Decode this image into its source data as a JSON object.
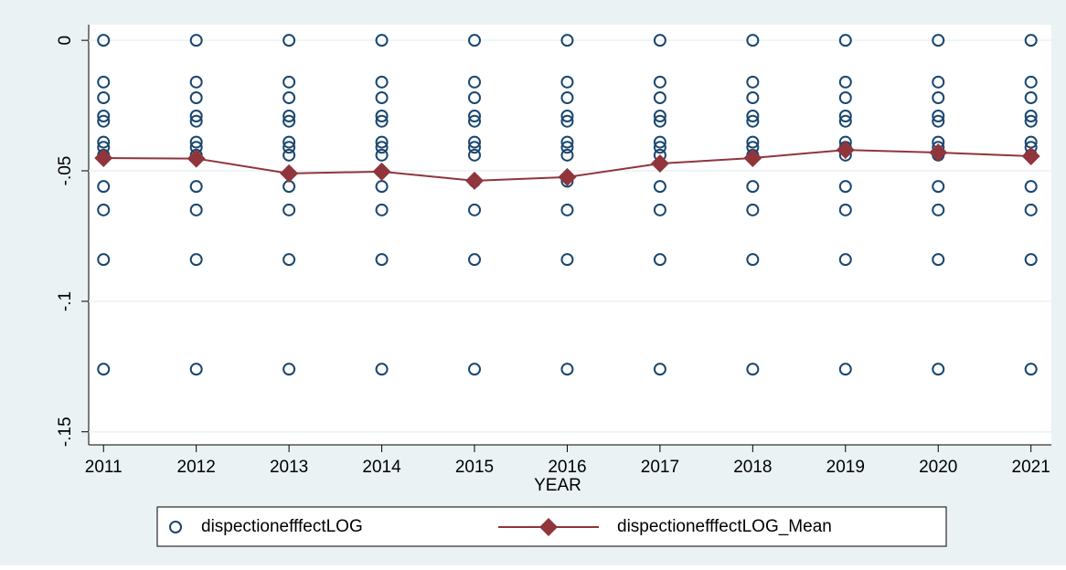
{
  "chart_data": {
    "type": "scatter",
    "x_label": "YEAR",
    "xlim": [
      2010.84,
      2021.22
    ],
    "xticks": [
      2011,
      2012,
      2013,
      2014,
      2015,
      2016,
      2017,
      2018,
      2019,
      2020,
      2021
    ],
    "ylim": [
      -0.155,
      0.006
    ],
    "yticks": [
      0,
      {
        "value": -0.05,
        "label": "-.05"
      },
      {
        "value": -0.1,
        "label": "-.1"
      },
      {
        "value": -0.15,
        "label": "-.15"
      }
    ],
    "grid": true,
    "legend": "bottom",
    "series": [
      {
        "name": "dispectionefffectLOG",
        "type": "scatter",
        "color": "#1a476f",
        "x": [
          2011,
          2011,
          2011,
          2011,
          2011,
          2011,
          2011,
          2011,
          2011,
          2011,
          2011,
          2011,
          2012,
          2012,
          2012,
          2012,
          2012,
          2012,
          2012,
          2012,
          2012,
          2012,
          2012,
          2012,
          2013,
          2013,
          2013,
          2013,
          2013,
          2013,
          2013,
          2013,
          2013,
          2013,
          2013,
          2013,
          2014,
          2014,
          2014,
          2014,
          2014,
          2014,
          2014,
          2014,
          2014,
          2014,
          2014,
          2014,
          2015,
          2015,
          2015,
          2015,
          2015,
          2015,
          2015,
          2015,
          2015,
          2015,
          2015,
          2015,
          2016,
          2016,
          2016,
          2016,
          2016,
          2016,
          2016,
          2016,
          2016,
          2016,
          2016,
          2016,
          2017,
          2017,
          2017,
          2017,
          2017,
          2017,
          2017,
          2017,
          2017,
          2017,
          2017,
          2017,
          2018,
          2018,
          2018,
          2018,
          2018,
          2018,
          2018,
          2018,
          2018,
          2018,
          2018,
          2018,
          2019,
          2019,
          2019,
          2019,
          2019,
          2019,
          2019,
          2019,
          2019,
          2019,
          2019,
          2019,
          2020,
          2020,
          2020,
          2020,
          2020,
          2020,
          2020,
          2020,
          2020,
          2020,
          2020,
          2020,
          2021,
          2021,
          2021,
          2021,
          2021,
          2021,
          2021,
          2021,
          2021,
          2021,
          2021,
          2021
        ],
        "values": [
          0,
          -0.016,
          -0.022,
          -0.029,
          -0.031,
          -0.039,
          -0.041,
          -0.044,
          -0.056,
          -0.065,
          -0.084,
          -0.126,
          0,
          -0.016,
          -0.022,
          -0.029,
          -0.031,
          -0.039,
          -0.041,
          -0.044,
          -0.056,
          -0.065,
          -0.084,
          -0.126,
          0,
          -0.016,
          -0.022,
          -0.029,
          -0.031,
          -0.039,
          -0.041,
          -0.044,
          -0.056,
          -0.065,
          -0.084,
          -0.126,
          0,
          -0.016,
          -0.022,
          -0.029,
          -0.031,
          -0.039,
          -0.041,
          -0.044,
          -0.056,
          -0.065,
          -0.084,
          -0.126,
          0,
          -0.016,
          -0.022,
          -0.029,
          -0.031,
          -0.039,
          -0.041,
          -0.044,
          -0.054,
          -0.065,
          -0.084,
          -0.126,
          0,
          -0.016,
          -0.022,
          -0.029,
          -0.031,
          -0.039,
          -0.041,
          -0.044,
          -0.054,
          -0.065,
          -0.084,
          -0.126,
          0,
          -0.016,
          -0.022,
          -0.029,
          -0.031,
          -0.039,
          -0.041,
          -0.044,
          -0.056,
          -0.065,
          -0.084,
          -0.126,
          0,
          -0.016,
          -0.022,
          -0.029,
          -0.031,
          -0.039,
          -0.041,
          -0.044,
          -0.056,
          -0.065,
          -0.084,
          -0.126,
          0,
          -0.016,
          -0.022,
          -0.029,
          -0.031,
          -0.039,
          -0.041,
          -0.044,
          -0.056,
          -0.065,
          -0.084,
          -0.126,
          0,
          -0.016,
          -0.022,
          -0.029,
          -0.031,
          -0.039,
          -0.041,
          -0.044,
          -0.056,
          -0.065,
          -0.084,
          -0.126,
          0,
          -0.016,
          -0.022,
          -0.029,
          -0.031,
          -0.039,
          -0.041,
          -0.044,
          -0.056,
          -0.065,
          -0.084,
          -0.126
        ]
      },
      {
        "name": "dispectionefffectLOG_Mean",
        "type": "line",
        "color": "#90353b",
        "x": [
          2011,
          2012,
          2013,
          2014,
          2015,
          2016,
          2017,
          2018,
          2019,
          2020,
          2021
        ],
        "values": [
          -0.0451,
          -0.0453,
          -0.051,
          -0.0503,
          -0.0538,
          -0.0524,
          -0.0472,
          -0.0451,
          -0.042,
          -0.043,
          -0.0444
        ]
      }
    ]
  }
}
